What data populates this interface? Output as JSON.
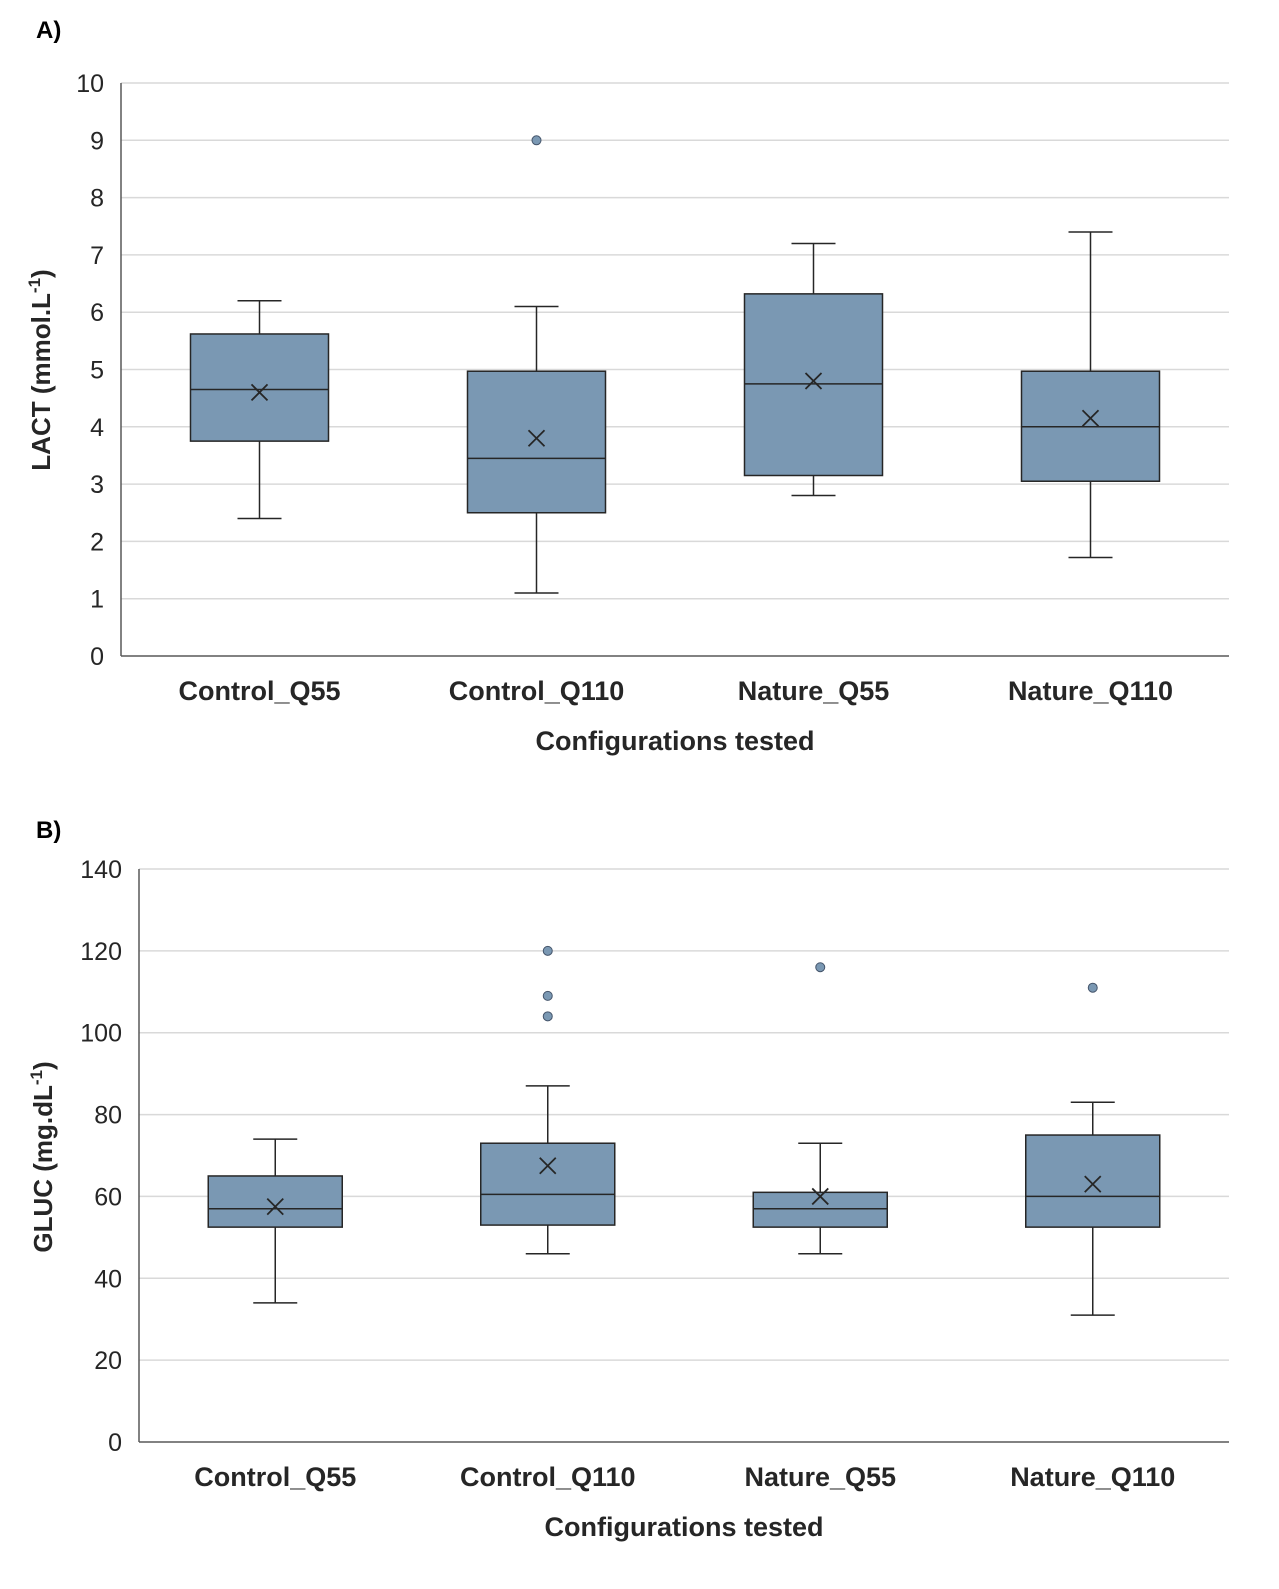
{
  "chart_data": [
    {
      "type": "box",
      "panel_label": "A)",
      "categories": [
        "Control_Q55",
        "Control_Q110",
        "Nature_Q55",
        "Nature_Q110"
      ],
      "xlabel": "Configurations  tested",
      "ylabel": "LACT   (mmol.L",
      "ylabel_sup": "-1",
      "ylabel_close": ")",
      "ylim": [
        0,
        10
      ],
      "yticks": [
        0,
        1,
        2,
        3,
        4,
        5,
        6,
        7,
        8,
        9,
        10
      ],
      "grid": true,
      "box_color": "#7a98b3",
      "line_color": "#262626",
      "boxes": [
        {
          "min": 2.4,
          "q1": 3.75,
          "median": 4.65,
          "q3": 5.62,
          "max": 6.2,
          "mean": 4.6,
          "outliers": []
        },
        {
          "min": 1.1,
          "q1": 2.5,
          "median": 3.45,
          "q3": 4.97,
          "max": 6.1,
          "mean": 3.8,
          "outliers": [
            9.0
          ]
        },
        {
          "min": 2.8,
          "q1": 3.15,
          "median": 4.75,
          "q3": 6.32,
          "max": 7.2,
          "mean": 4.8,
          "outliers": []
        },
        {
          "min": 1.72,
          "q1": 3.05,
          "median": 4.0,
          "q3": 4.97,
          "max": 7.4,
          "mean": 4.15,
          "outliers": []
        }
      ]
    },
    {
      "type": "box",
      "panel_label": "B)",
      "categories": [
        "Control_Q55",
        "Control_Q110",
        "Nature_Q55",
        "Nature_Q110"
      ],
      "xlabel": "Configurations  tested",
      "ylabel": "GLUC   (mg.dL",
      "ylabel_sup": "-1",
      "ylabel_close": ")",
      "ylim": [
        0,
        140
      ],
      "yticks": [
        0,
        20,
        40,
        60,
        80,
        100,
        120,
        140
      ],
      "grid": true,
      "box_color": "#7a98b3",
      "line_color": "#262626",
      "boxes": [
        {
          "min": 34,
          "q1": 52.5,
          "median": 57,
          "q3": 65,
          "max": 74,
          "mean": 57.5,
          "outliers": []
        },
        {
          "min": 46,
          "q1": 53,
          "median": 60.5,
          "q3": 73,
          "max": 87,
          "mean": 67.5,
          "outliers": [
            104,
            109,
            120
          ]
        },
        {
          "min": 46,
          "q1": 52.5,
          "median": 57,
          "q3": 61,
          "max": 73,
          "mean": 60,
          "outliers": [
            116
          ]
        },
        {
          "min": 31,
          "q1": 52.5,
          "median": 60,
          "q3": 75,
          "max": 83,
          "mean": 63,
          "outliers": [
            111
          ]
        }
      ]
    }
  ]
}
